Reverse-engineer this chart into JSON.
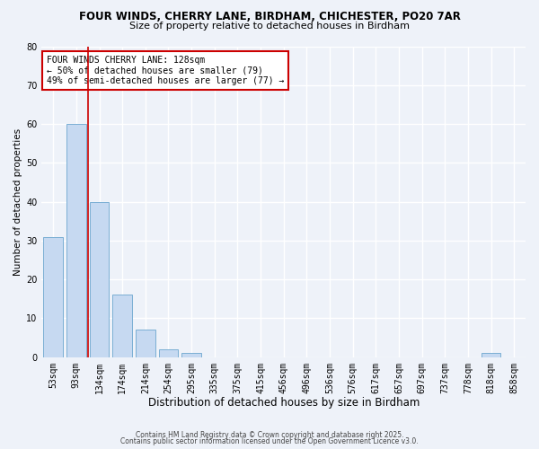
{
  "title1": "FOUR WINDS, CHERRY LANE, BIRDHAM, CHICHESTER, PO20 7AR",
  "title2": "Size of property relative to detached houses in Birdham",
  "xlabel": "Distribution of detached houses by size in Birdham",
  "ylabel": "Number of detached properties",
  "bins": [
    "53sqm",
    "93sqm",
    "134sqm",
    "174sqm",
    "214sqm",
    "254sqm",
    "295sqm",
    "335sqm",
    "375sqm",
    "415sqm",
    "456sqm",
    "496sqm",
    "536sqm",
    "576sqm",
    "617sqm",
    "657sqm",
    "697sqm",
    "737sqm",
    "778sqm",
    "818sqm",
    "858sqm"
  ],
  "values": [
    31,
    60,
    40,
    16,
    7,
    2,
    1,
    0,
    0,
    0,
    0,
    0,
    0,
    0,
    0,
    0,
    0,
    0,
    0,
    1,
    0
  ],
  "bar_color": "#c6d9f1",
  "bar_edge_color": "#7bafd4",
  "vline_color": "#cc0000",
  "annotation_text": "FOUR WINDS CHERRY LANE: 128sqm\n← 50% of detached houses are smaller (79)\n49% of semi-detached houses are larger (77) →",
  "annotation_box_color": "#ffffff",
  "annotation_box_edge": "#cc0000",
  "ylim": [
    0,
    80
  ],
  "yticks": [
    0,
    10,
    20,
    30,
    40,
    50,
    60,
    70,
    80
  ],
  "footer1": "Contains HM Land Registry data © Crown copyright and database right 2025.",
  "footer2": "Contains public sector information licensed under the Open Government Licence v3.0.",
  "bg_color": "#eef2f9",
  "grid_color": "#ffffff",
  "title1_fontsize": 8.5,
  "title2_fontsize": 8,
  "xlabel_fontsize": 8.5,
  "ylabel_fontsize": 7.5,
  "tick_fontsize": 7,
  "footer_fontsize": 5.5,
  "annotation_fontsize": 7
}
